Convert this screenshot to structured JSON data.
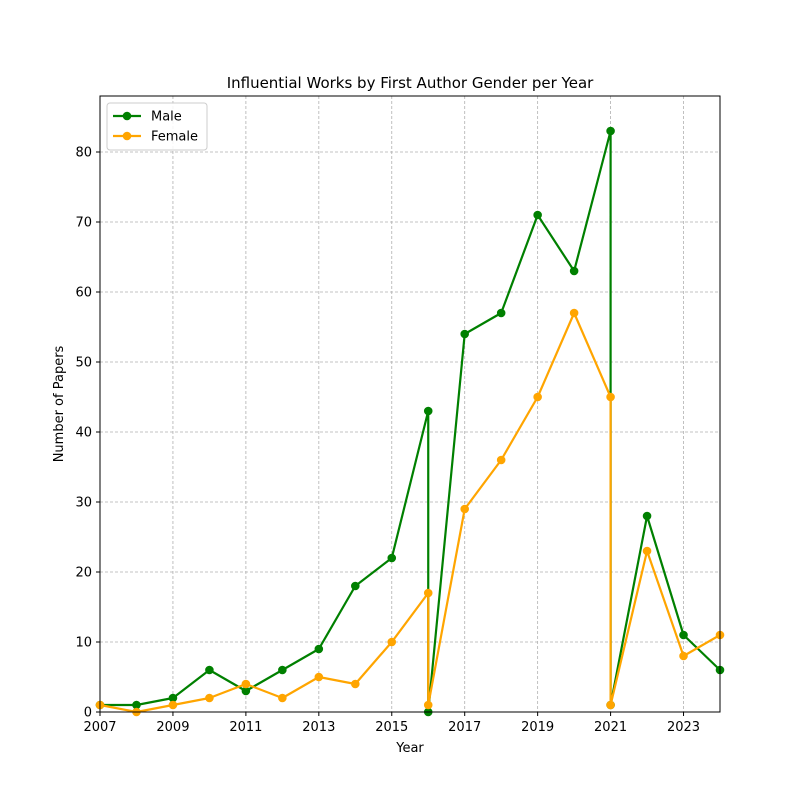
{
  "chart_data": {
    "type": "line",
    "title": "Influential Works by First Author Gender per Year",
    "xlabel": "Year",
    "ylabel": "Number of Papers",
    "xlim": [
      2007,
      2024
    ],
    "ylim": [
      0,
      88
    ],
    "xticks": [
      2007,
      2009,
      2011,
      2013,
      2015,
      2017,
      2019,
      2021,
      2023
    ],
    "yticks": [
      0,
      10,
      20,
      30,
      40,
      50,
      60,
      70,
      80
    ],
    "grid": true,
    "legend_position": "top-left",
    "series": [
      {
        "name": "Male",
        "color": "#008000",
        "points": [
          [
            2007,
            1
          ],
          [
            2008,
            1
          ],
          [
            2009,
            2
          ],
          [
            2010,
            6
          ],
          [
            2011,
            3
          ],
          [
            2012,
            6
          ],
          [
            2013,
            9
          ],
          [
            2014,
            18
          ],
          [
            2015,
            22
          ],
          [
            2016,
            43
          ],
          [
            2016,
            0
          ],
          [
            2017,
            54
          ],
          [
            2018,
            57
          ],
          [
            2019,
            71
          ],
          [
            2020,
            63
          ],
          [
            2021,
            83
          ],
          [
            2021,
            1
          ],
          [
            2022,
            28
          ],
          [
            2023,
            11
          ],
          [
            2024,
            6
          ]
        ]
      },
      {
        "name": "Female",
        "color": "#FFA500",
        "points": [
          [
            2007,
            1
          ],
          [
            2008,
            0
          ],
          [
            2009,
            1
          ],
          [
            2010,
            2
          ],
          [
            2011,
            4
          ],
          [
            2012,
            2
          ],
          [
            2013,
            5
          ],
          [
            2014,
            4
          ],
          [
            2015,
            10
          ],
          [
            2016,
            17
          ],
          [
            2016,
            1
          ],
          [
            2017,
            29
          ],
          [
            2018,
            36
          ],
          [
            2019,
            45
          ],
          [
            2020,
            57
          ],
          [
            2021,
            45
          ],
          [
            2021,
            1
          ],
          [
            2022,
            23
          ],
          [
            2023,
            8
          ],
          [
            2024,
            11
          ]
        ]
      }
    ]
  }
}
